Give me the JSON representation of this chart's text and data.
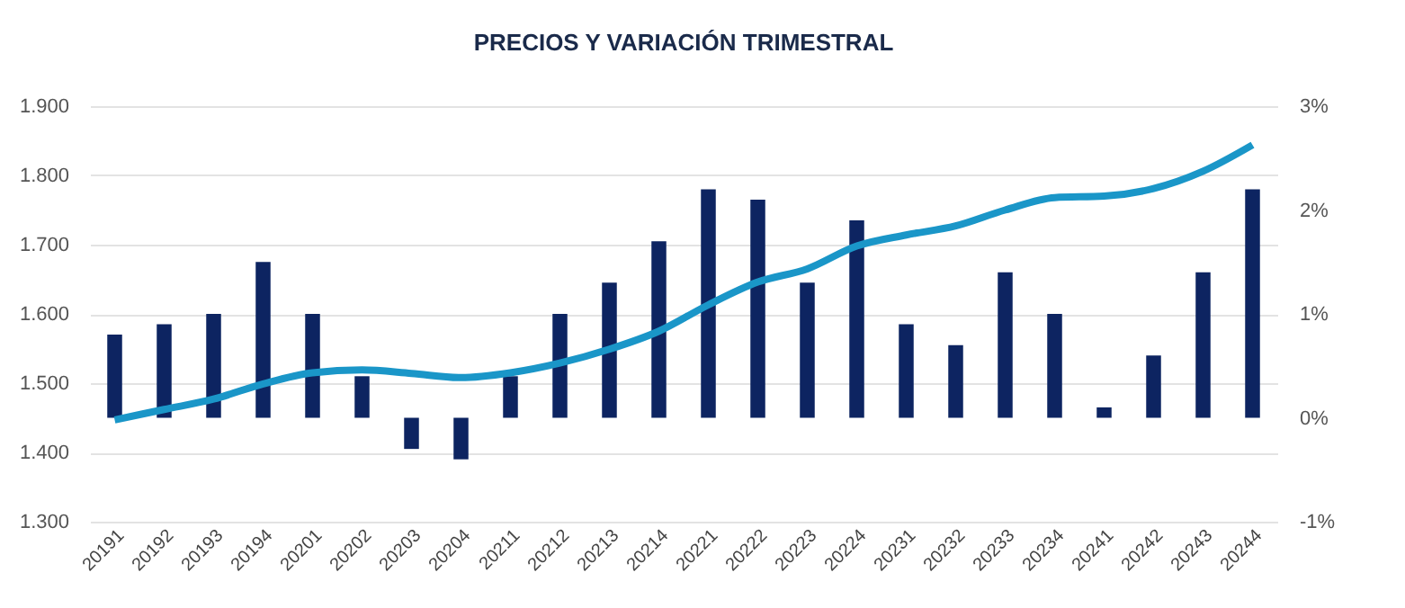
{
  "chart_data": {
    "type": "bar",
    "title": "PRECIOS Y VARIACIÓN TRIMESTRAL",
    "categories": [
      "20191",
      "20192",
      "20193",
      "20194",
      "20201",
      "20202",
      "20203",
      "20204",
      "20211",
      "20212",
      "20213",
      "20214",
      "20221",
      "20222",
      "20223",
      "20224",
      "20231",
      "20232",
      "20233",
      "20234",
      "20241",
      "20242",
      "20243",
      "20244"
    ],
    "series": [
      {
        "axis": "y2",
        "color": "#0d2461",
        "values": [
          0.8,
          0.9,
          1.0,
          1.5,
          1.0,
          0.4,
          -0.3,
          -0.4,
          0.4,
          1.0,
          1.3,
          1.7,
          2.2,
          2.1,
          1.3,
          1.9,
          0.9,
          0.7,
          1.4,
          1.0,
          0.1,
          0.6,
          1.4,
          2.2
        ]
      },
      {
        "type": "line",
        "color": "#1a96c8",
        "values": [
          1447,
          1462,
          1477,
          1499,
          1515,
          1519,
          1514,
          1508,
          1515,
          1529,
          1549,
          1575,
          1613,
          1646,
          1665,
          1698,
          1714,
          1727,
          1750,
          1768,
          1770,
          1781,
          1806,
          1844
        ]
      }
    ],
    "ylim": [
      1300,
      1900
    ],
    "yticks": [
      {
        "value": 1300,
        "label": "1.300"
      },
      {
        "value": 1400,
        "label": "1.400"
      },
      {
        "value": 1500,
        "label": "1.500"
      },
      {
        "value": 1600,
        "label": "1.600"
      },
      {
        "value": 1700,
        "label": "1.700"
      },
      {
        "value": 1800,
        "label": "1.800"
      },
      {
        "value": 1900,
        "label": "1.900"
      }
    ],
    "y2lim": [
      -1,
      3
    ],
    "y2ticks": [
      {
        "value": -1,
        "label": "-1%"
      },
      {
        "value": 0,
        "label": "0%"
      },
      {
        "value": 1,
        "label": "1%"
      },
      {
        "value": 2,
        "label": "2%"
      },
      {
        "value": 3,
        "label": "3%"
      }
    ],
    "grid": "y"
  }
}
